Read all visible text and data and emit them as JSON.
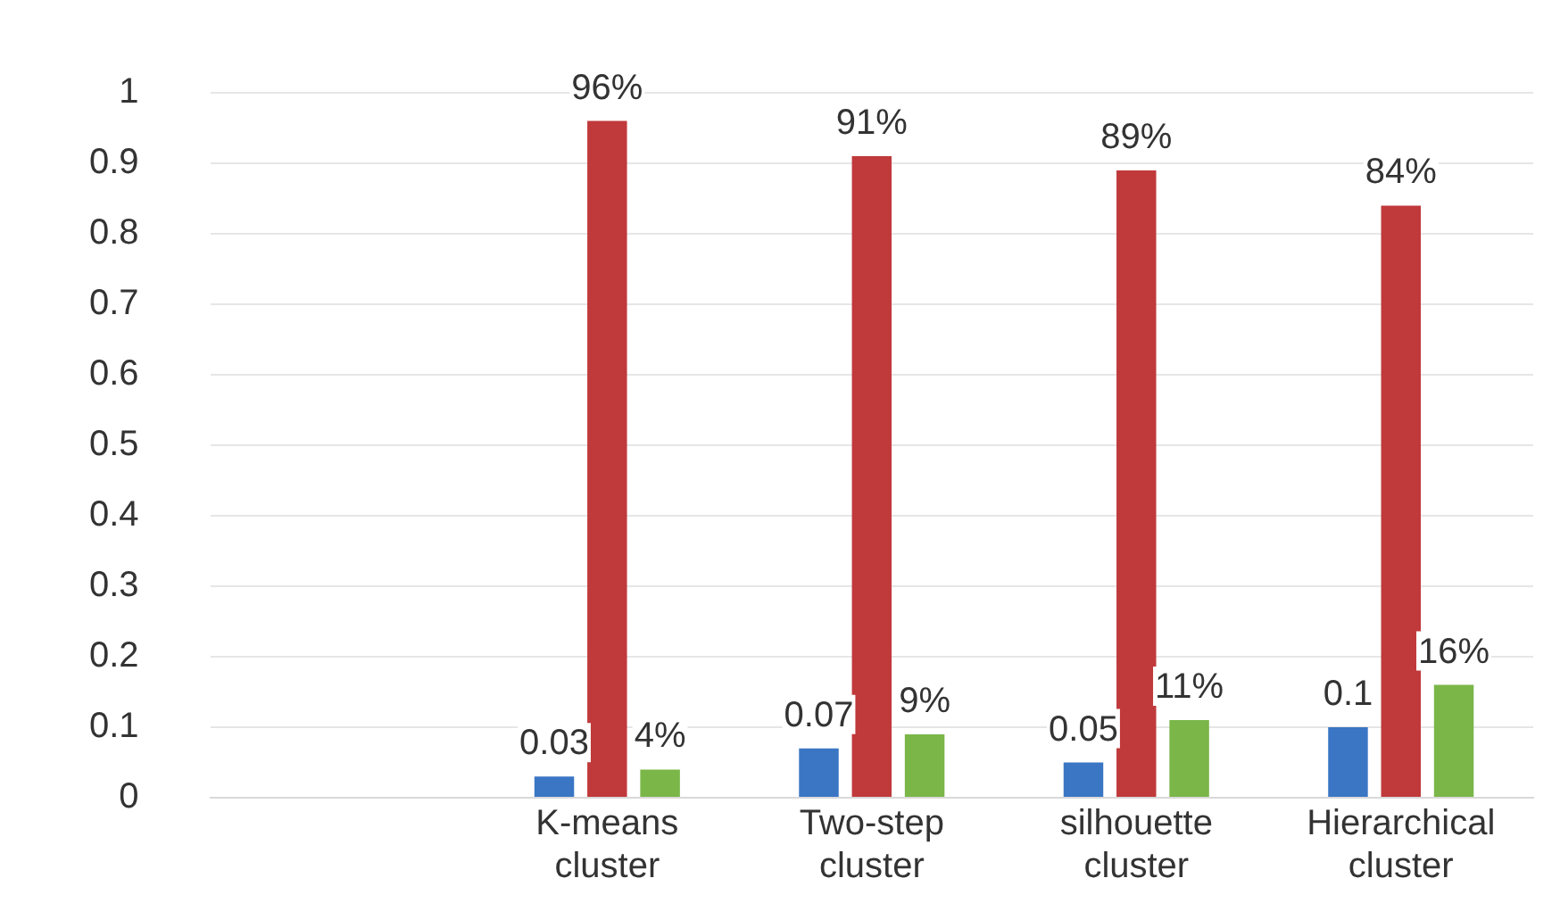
{
  "chart_data": {
    "type": "bar",
    "categories": [
      null,
      "K-means cluster",
      "Two-step cluster",
      "silhouette cluster",
      "Hierarchical cluster"
    ],
    "series": [
      {
        "color": "#3a76c4",
        "values": [
          null,
          0.03,
          0.07,
          0.05,
          0.1
        ],
        "value_labels": [
          null,
          "0.03",
          "0.07",
          "0.05",
          "0.1"
        ]
      },
      {
        "color": "#c0393b",
        "values": [
          null,
          0.96,
          0.91,
          0.89,
          0.84
        ],
        "value_labels": [
          null,
          "96%",
          "91%",
          "89%",
          "84%"
        ]
      },
      {
        "color": "#7ab648",
        "values": [
          null,
          0.04,
          0.09,
          0.11,
          0.16
        ],
        "value_labels": [
          null,
          "4%",
          "9%",
          "11%",
          "16%"
        ]
      }
    ],
    "ylim": [
      0,
      1
    ],
    "yticks": [
      0,
      0.1,
      0.2,
      0.3,
      0.4,
      0.5,
      0.6,
      0.7,
      0.8,
      0.9,
      1
    ],
    "grid": "y",
    "legend": false
  }
}
